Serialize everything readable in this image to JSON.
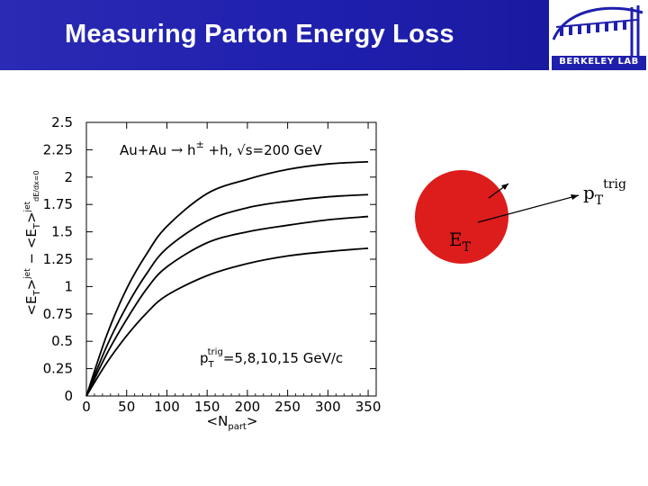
{
  "header": {
    "title": "Measuring Parton Energy Loss",
    "logo_label": "BERKELEY LAB"
  },
  "colors": {
    "header_bg": "#1f1fae",
    "circle_fill": "#dd1c1c",
    "title_text": "#ffffff"
  },
  "diagram": {
    "et_label": "E",
    "et_sub": "T",
    "pt_label": "p",
    "pt_sub": "T",
    "pt_sup": "trig"
  },
  "chart_data": {
    "type": "line",
    "title": "Au+Au → h± + h, √s=200 GeV",
    "annotation": "pT trig = 5,8,10,15 GeV/c",
    "xlabel": "<Npart>",
    "ylabel": "<ET>jet − <ET>jet (dE/dx=0)",
    "xlim": [
      0,
      360
    ],
    "ylim": [
      0,
      2.5
    ],
    "x_ticks": [
      0,
      50,
      100,
      150,
      200,
      250,
      300,
      350
    ],
    "y_ticks": [
      0,
      0.25,
      0.5,
      0.75,
      1,
      1.25,
      1.5,
      1.75,
      2,
      2.25,
      2.5
    ],
    "y_tick_labels": [
      "0",
      "0.25",
      "0.5",
      "0.75",
      "1",
      "1.25",
      "1.5",
      "1.75",
      "2",
      "2.25",
      "2.5"
    ],
    "x": [
      0,
      25,
      50,
      75,
      100,
      150,
      200,
      250,
      300,
      350
    ],
    "series": [
      {
        "values": [
          0,
          0.55,
          0.98,
          1.3,
          1.55,
          1.85,
          1.98,
          2.07,
          2.12,
          2.14
        ]
      },
      {
        "values": [
          0,
          0.45,
          0.82,
          1.12,
          1.35,
          1.6,
          1.72,
          1.78,
          1.82,
          1.84
        ]
      },
      {
        "values": [
          0,
          0.38,
          0.7,
          0.98,
          1.18,
          1.4,
          1.5,
          1.56,
          1.61,
          1.64
        ]
      },
      {
        "values": [
          0,
          0.3,
          0.55,
          0.76,
          0.92,
          1.1,
          1.21,
          1.28,
          1.32,
          1.35
        ]
      }
    ]
  }
}
